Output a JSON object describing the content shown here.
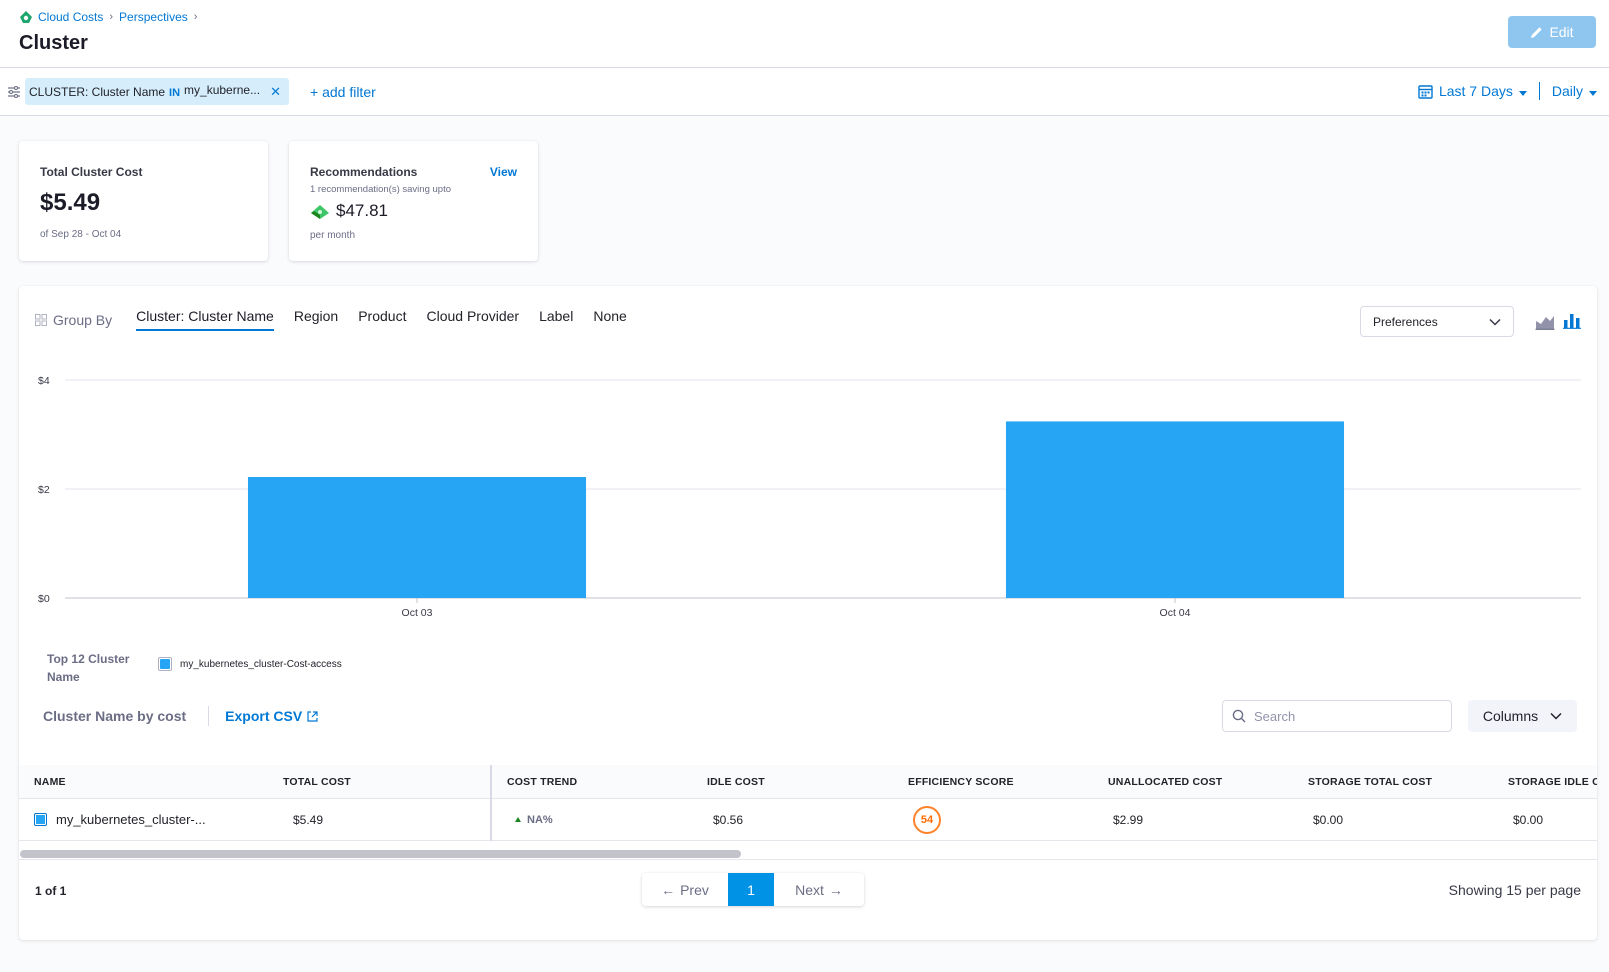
{
  "breadcrumb": {
    "items": [
      "Cloud Costs",
      "Perspectives"
    ]
  },
  "header": {
    "title": "Cluster",
    "edit_label": "Edit"
  },
  "filter": {
    "chip_field": "CLUSTER: Cluster Name",
    "chip_operator": "IN",
    "chip_value": "my_kuberne...",
    "add_filter_label": "+ add filter",
    "time_range": "Last 7 Days",
    "granularity": "Daily"
  },
  "summary": {
    "total_label": "Total Cluster Cost",
    "total_value": "$5.49",
    "total_period": "of Sep 28 - Oct 04",
    "recs_label": "Recommendations",
    "recs_view": "View",
    "recs_count": "1 recommendation(s) saving upto",
    "recs_saving": "$47.81",
    "recs_per": "per month"
  },
  "groupby": {
    "label": "Group By",
    "tabs": [
      "Cluster: Cluster Name",
      "Region",
      "Product",
      "Cloud Provider",
      "Label",
      "None"
    ],
    "active_index": 0,
    "preferences_label": "Preferences"
  },
  "chart_data": {
    "type": "bar",
    "categories": [
      "Oct 03",
      "Oct 04"
    ],
    "series": [
      {
        "name": "my_kubernetes_cluster-Cost-access",
        "values": [
          2.22,
          3.24
        ],
        "color": "#26a5f4"
      }
    ],
    "y_ticks": [
      "$0",
      "$2",
      "$4"
    ],
    "ylim": [
      0,
      4
    ],
    "grid": true,
    "legend_title": "Top 12 Cluster Name",
    "legend_placement": "bottom-left"
  },
  "table": {
    "caption": "Cluster Name by cost",
    "export_label": "Export CSV",
    "search_placeholder": "Search",
    "columns_label": "Columns",
    "headers": [
      "NAME",
      "TOTAL COST",
      "COST TREND",
      "IDLE COST",
      "EFFICIENCY SCORE",
      "UNALLOCATED COST",
      "STORAGE TOTAL COST",
      "STORAGE IDLE COST"
    ],
    "rows": [
      {
        "name": "my_kubernetes_cluster-...",
        "total_cost": "$5.49",
        "cost_trend": "NA%",
        "idle_cost": "$0.56",
        "efficiency_score": "54",
        "unallocated_cost": "$2.99",
        "storage_total_cost": "$0.00",
        "storage_idle_cost": "$0.00"
      }
    ]
  },
  "pagination": {
    "count": "1 of 1",
    "prev_label": "Prev",
    "current": "1",
    "next_label": "Next",
    "per_page": "Showing 15 per page"
  },
  "colors": {
    "accent": "#0278d5",
    "bar": "#26a5f4",
    "edit_button": "#8ec6ef",
    "score": "#ff832b"
  }
}
